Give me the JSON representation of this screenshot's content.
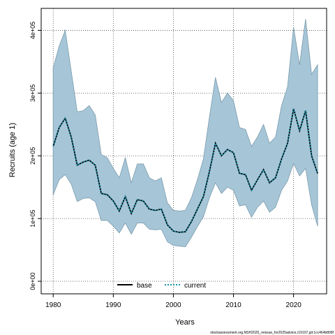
{
  "chart_data": {
    "type": "line",
    "xlabel": "Years",
    "ylabel": "Recruits (age 1)",
    "xlim": [
      1978,
      2025.5
    ],
    "ylim": [
      -20000,
      435000
    ],
    "x_ticks": [
      1980,
      1990,
      2000,
      2010,
      2020
    ],
    "y_ticks": [
      0,
      100000,
      200000,
      300000,
      400000
    ],
    "y_tick_labels": [
      "0e+00",
      "1e+05",
      "2e+05",
      "3e+05",
      "4e+05"
    ],
    "grid": true,
    "legend_position": "bottom-center",
    "x": [
      1980,
      1981,
      1982,
      1983,
      1984,
      1985,
      1986,
      1987,
      1988,
      1989,
      1990,
      1991,
      1992,
      1993,
      1994,
      1995,
      1996,
      1997,
      1998,
      1999,
      2000,
      2001,
      2002,
      2003,
      2004,
      2005,
      2006,
      2007,
      2008,
      2009,
      2010,
      2011,
      2012,
      2013,
      2014,
      2015,
      2016,
      2017,
      2018,
      2019,
      2020,
      2021,
      2022,
      2023,
      2024
    ],
    "series": [
      {
        "name": "base",
        "style": "solid",
        "color": "#000000",
        "values": [
          215000,
          245000,
          260000,
          230000,
          185000,
          190000,
          193000,
          185000,
          140000,
          138000,
          128000,
          112000,
          135000,
          108000,
          130000,
          128000,
          115000,
          113000,
          115000,
          90000,
          80000,
          78000,
          79000,
          95000,
          115000,
          135000,
          175000,
          220000,
          200000,
          210000,
          205000,
          172000,
          170000,
          145000,
          162000,
          178000,
          157000,
          165000,
          195000,
          220000,
          275000,
          240000,
          272000,
          200000,
          172000
        ]
      },
      {
        "name": "current",
        "style": "dotted",
        "color": "#1a8fa8",
        "values": [
          215000,
          245000,
          260000,
          230000,
          185000,
          190000,
          193000,
          185000,
          140000,
          138000,
          128000,
          112000,
          135000,
          108000,
          130000,
          128000,
          115000,
          113000,
          115000,
          90000,
          80000,
          78000,
          79000,
          95000,
          115000,
          135000,
          175000,
          220000,
          200000,
          210000,
          205000,
          172000,
          170000,
          145000,
          162000,
          178000,
          157000,
          165000,
          195000,
          220000,
          275000,
          240000,
          272000,
          200000,
          172000
        ]
      }
    ],
    "band": {
      "color": "#a6c6d8",
      "edge_color": "#7a9aaa",
      "upper": [
        340000,
        375000,
        400000,
        335000,
        270000,
        272000,
        280000,
        265000,
        202000,
        197000,
        180000,
        165000,
        197000,
        157000,
        187000,
        187000,
        165000,
        160000,
        165000,
        125000,
        113000,
        112000,
        113000,
        133000,
        162000,
        195000,
        262000,
        325000,
        285000,
        300000,
        288000,
        245000,
        242000,
        215000,
        230000,
        250000,
        220000,
        230000,
        280000,
        310000,
        405000,
        345000,
        418000,
        330000,
        345000
      ],
      "lower": [
        138000,
        162000,
        170000,
        155000,
        127000,
        132000,
        133000,
        127000,
        97000,
        97000,
        88000,
        77000,
        93000,
        75000,
        93000,
        93000,
        83000,
        82000,
        83000,
        63000,
        57000,
        56000,
        55000,
        70000,
        87000,
        103000,
        133000,
        157000,
        140000,
        150000,
        145000,
        120000,
        122000,
        102000,
        118000,
        128000,
        110000,
        118000,
        145000,
        160000,
        188000,
        168000,
        180000,
        122000,
        88000
      ]
    }
  },
  "footer": {
    "source_text": "stockassessment.org,NSH2025_reissue_for2025advice,r19107,git:1cc464b808f"
  }
}
